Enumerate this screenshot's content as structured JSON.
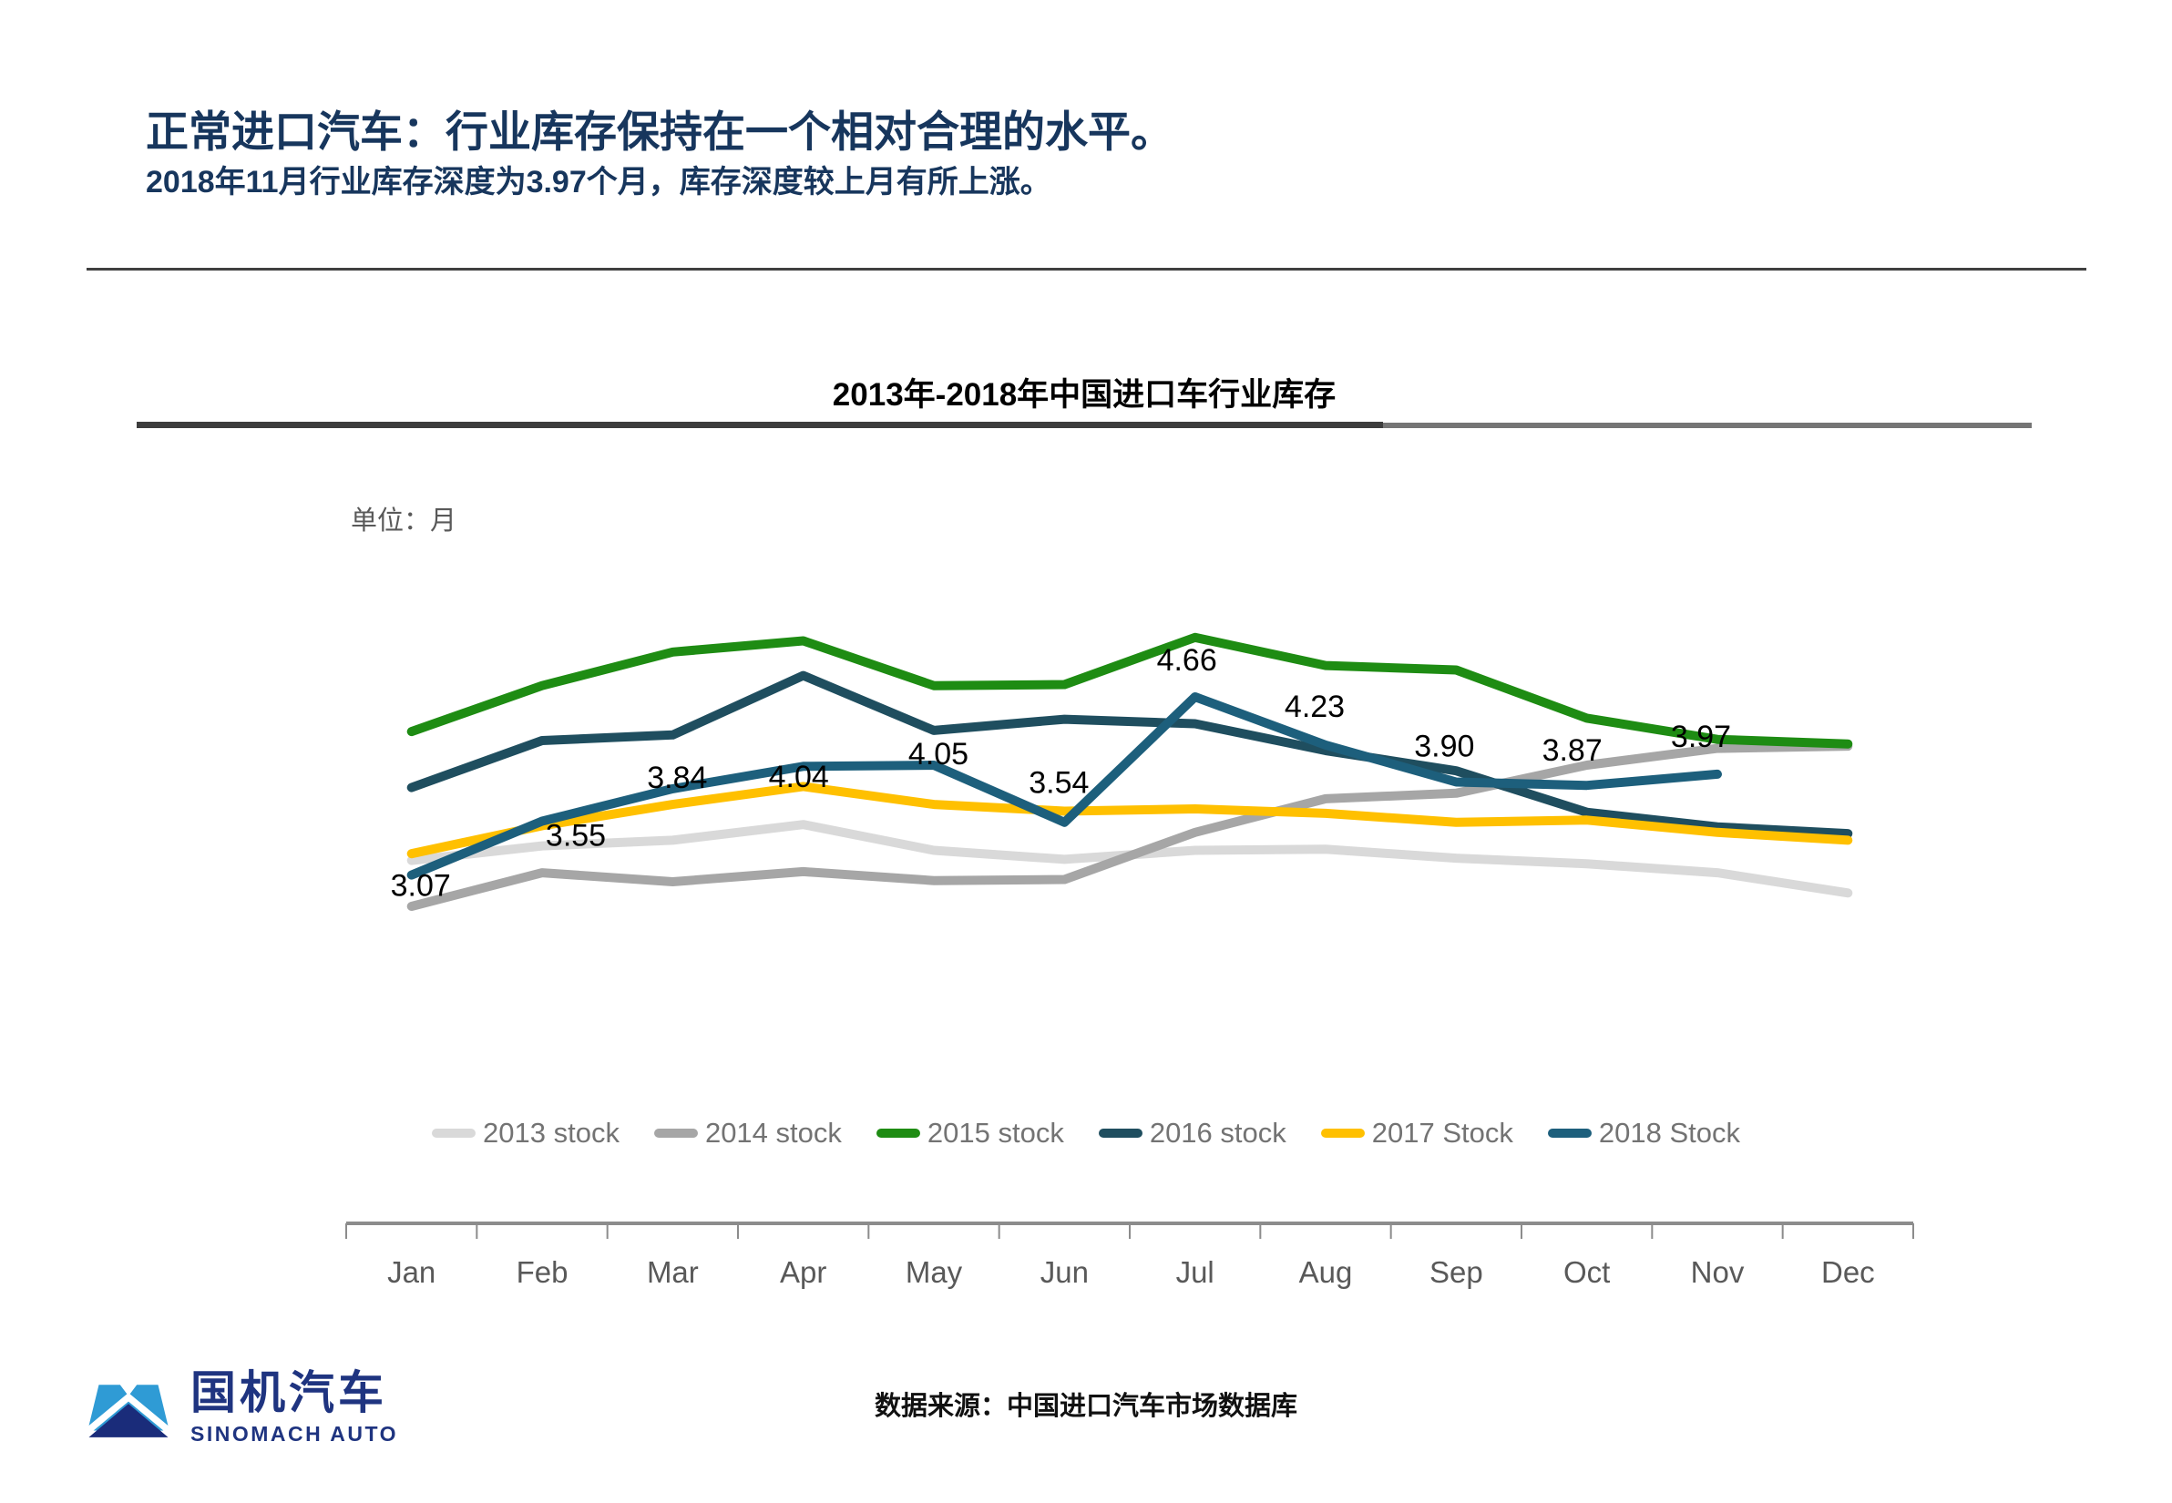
{
  "page": {
    "title": "正常进口汽车：行业库存保持在一个相对合理的水平。",
    "subtitle": "2018年11月行业库存深度为3.97个月，库存深度较上月有所上涨。",
    "source": "数据来源：中国进口汽车市场数据库",
    "logo": {
      "cn": "国机汽车",
      "en": "SINOMACH AUTO"
    }
  },
  "chart_data": {
    "type": "line",
    "title": "2013年-2018年中国进口车行业库存",
    "unit_label": "单位：月",
    "ylabel": "月",
    "ylim": [
      2.5,
      5.5
    ],
    "grid": false,
    "legend_position": "bottom",
    "categories": [
      "Jan",
      "Feb",
      "Mar",
      "Apr",
      "May",
      "Jun",
      "Jul",
      "Aug",
      "Sep",
      "Oct",
      "Nov",
      "Dec"
    ],
    "series": [
      {
        "name": "2013 stock",
        "color": "#D9D9D9",
        "values": [
          3.2,
          3.33,
          3.38,
          3.52,
          3.29,
          3.21,
          3.29,
          3.3,
          3.22,
          3.17,
          3.09,
          2.91
        ]
      },
      {
        "name": "2014 stock",
        "color": "#A6A6A6",
        "values": [
          2.79,
          3.09,
          3.01,
          3.1,
          3.02,
          3.03,
          3.45,
          3.75,
          3.8,
          4.05,
          4.2,
          4.22
        ]
      },
      {
        "name": "2015 stock",
        "color": "#1E8C13",
        "values": [
          4.35,
          4.76,
          5.06,
          5.16,
          4.76,
          4.77,
          5.19,
          4.94,
          4.9,
          4.47,
          4.28,
          4.24
        ]
      },
      {
        "name": "2016 stock",
        "color": "#1F4E5F",
        "values": [
          3.85,
          4.27,
          4.32,
          4.85,
          4.36,
          4.46,
          4.42,
          4.18,
          4.0,
          3.63,
          3.5,
          3.44
        ]
      },
      {
        "name": "2017 Stock",
        "color": "#FFC000",
        "values": [
          3.26,
          3.51,
          3.7,
          3.86,
          3.7,
          3.64,
          3.66,
          3.62,
          3.54,
          3.56,
          3.45,
          3.38
        ]
      },
      {
        "name": "2018 Stock",
        "color": "#1D5F7C",
        "values": [
          3.07,
          3.55,
          3.84,
          4.04,
          4.05,
          3.54,
          4.66,
          4.23,
          3.9,
          3.87,
          3.97,
          null
        ],
        "point_labels": [
          {
            "i": 0,
            "text": "3.07",
            "dx": 10,
            "dy": 14
          },
          {
            "i": 1,
            "text": "3.55",
            "dx": 37,
            "dy": 18
          },
          {
            "i": 2,
            "text": "3.84",
            "dx": 5,
            "dy": -10
          },
          {
            "i": 3,
            "text": "4.04",
            "dx": -5,
            "dy": 14
          },
          {
            "i": 4,
            "text": "4.05",
            "dx": 5,
            "dy": -10
          },
          {
            "i": 5,
            "text": "3.54",
            "dx": -6,
            "dy": -41
          },
          {
            "i": 6,
            "text": "4.66",
            "dx": -9,
            "dy": -38
          },
          {
            "i": 7,
            "text": "4.23",
            "dx": -12,
            "dy": -40
          },
          {
            "i": 8,
            "text": "3.90",
            "dx": -13,
            "dy": -37
          },
          {
            "i": 9,
            "text": "3.87",
            "dx": -16,
            "dy": -36
          },
          {
            "i": 10,
            "text": "3.97",
            "dx": -18,
            "dy": -39
          }
        ]
      }
    ]
  }
}
